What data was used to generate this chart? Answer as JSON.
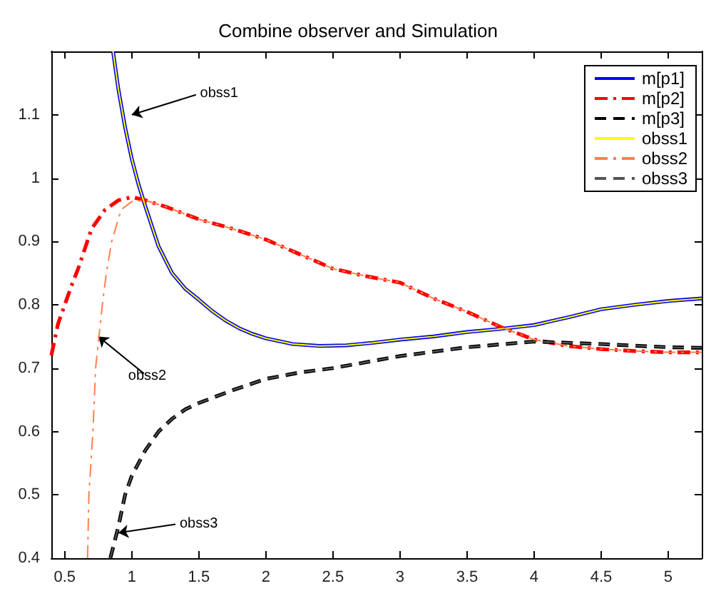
{
  "chart_data": {
    "type": "line",
    "title": "Combine observer and Simulation",
    "xlim": [
      0.4,
      5.25
    ],
    "xticks": [
      0.5,
      1,
      1.5,
      2,
      2.5,
      3,
      3.5,
      4,
      4.5,
      5
    ],
    "ylim": [
      0.4,
      1.2
    ],
    "yticks": [
      0.4,
      0.5,
      0.6,
      0.7,
      0.8,
      0.9,
      1,
      1.1
    ],
    "grid": false,
    "legend": "top right",
    "marker": "none",
    "series": [
      {
        "name": "m[p1]",
        "color": "#0000ff",
        "line_style": "solid",
        "x": [
          0.86,
          0.9,
          0.95,
          1.0,
          1.05,
          1.1,
          1.2,
          1.3,
          1.4,
          1.5,
          1.6,
          1.7,
          1.8,
          1.9,
          2.0,
          2.2,
          2.4,
          2.6,
          2.8,
          3.0,
          3.25,
          3.5,
          3.75,
          4.0,
          4.25,
          4.5,
          4.75,
          5.0,
          5.25
        ],
        "values": [
          1.2,
          1.14,
          1.08,
          1.03,
          0.99,
          0.956,
          0.892,
          0.85,
          0.825,
          0.808,
          0.79,
          0.775,
          0.763,
          0.754,
          0.747,
          0.738,
          0.735,
          0.736,
          0.74,
          0.745,
          0.75,
          0.757,
          0.762,
          0.768,
          0.78,
          0.793,
          0.8,
          0.806,
          0.81
        ]
      },
      {
        "name": "m[p2]",
        "color": "#ff0000",
        "line_style": "dashdot",
        "x": [
          0.4,
          0.45,
          0.5,
          0.55,
          0.6,
          0.7,
          0.8,
          0.9,
          1.0,
          1.1,
          1.25,
          1.5,
          1.75,
          2.0,
          2.25,
          2.5,
          2.75,
          3.0,
          3.25,
          3.5,
          3.75,
          4.0,
          4.25,
          4.5,
          4.75,
          5.0,
          5.25
        ],
        "values": [
          0.72,
          0.77,
          0.8,
          0.83,
          0.857,
          0.92,
          0.95,
          0.965,
          0.97,
          0.965,
          0.955,
          0.935,
          0.92,
          0.903,
          0.88,
          0.857,
          0.845,
          0.835,
          0.81,
          0.789,
          0.765,
          0.745,
          0.735,
          0.73,
          0.727,
          0.725,
          0.725
        ]
      },
      {
        "name": "m[p3]",
        "color": "#000000",
        "line_style": "dashed",
        "x": [
          0.84,
          0.9,
          0.95,
          1.0,
          1.1,
          1.2,
          1.3,
          1.4,
          1.5,
          1.75,
          2.0,
          2.25,
          2.5,
          3.0,
          3.5,
          4.0,
          4.5,
          5.0,
          5.25
        ],
        "values": [
          0.4,
          0.45,
          0.5,
          0.53,
          0.57,
          0.6,
          0.62,
          0.635,
          0.645,
          0.665,
          0.683,
          0.693,
          0.7,
          0.719,
          0.733,
          0.742,
          0.738,
          0.733,
          0.732
        ]
      },
      {
        "name": "obss1",
        "color": "#ffff00",
        "line_style": "solid",
        "x": [
          0.86,
          0.9,
          0.95,
          1.0,
          1.05,
          1.1,
          1.2,
          1.3,
          1.4,
          1.5,
          1.6,
          1.7,
          1.8,
          1.9,
          2.0,
          2.2,
          2.4,
          2.6,
          2.8,
          3.0,
          3.25,
          3.5,
          3.75,
          4.0,
          4.25,
          4.5,
          4.75,
          5.0,
          5.25
        ],
        "values": [
          1.2,
          1.14,
          1.08,
          1.03,
          0.99,
          0.956,
          0.892,
          0.85,
          0.825,
          0.808,
          0.79,
          0.775,
          0.763,
          0.754,
          0.747,
          0.738,
          0.735,
          0.736,
          0.74,
          0.745,
          0.75,
          0.757,
          0.762,
          0.768,
          0.78,
          0.793,
          0.8,
          0.806,
          0.81
        ]
      },
      {
        "name": "obss2",
        "color": "#ff7f50",
        "line_style": "dashdot",
        "x": [
          0.67,
          0.68,
          0.71,
          0.73,
          0.755,
          0.78,
          0.81,
          0.85,
          0.92,
          1.0,
          1.1,
          1.25,
          1.5,
          1.75,
          2.0,
          2.25,
          2.5,
          2.75,
          3.0,
          3.25,
          3.5,
          3.75,
          4.0,
          4.25,
          4.5,
          4.75,
          5.0,
          5.25
        ],
        "values": [
          0.4,
          0.5,
          0.6,
          0.7,
          0.75,
          0.8,
          0.85,
          0.9,
          0.95,
          0.963,
          0.965,
          0.955,
          0.935,
          0.92,
          0.903,
          0.88,
          0.857,
          0.845,
          0.835,
          0.81,
          0.789,
          0.765,
          0.745,
          0.735,
          0.73,
          0.727,
          0.725,
          0.725
        ]
      },
      {
        "name": "obss3",
        "color": "#555555",
        "line_style": "dashed",
        "x": [
          0.84,
          0.9,
          0.95,
          1.0,
          1.1,
          1.2,
          1.3,
          1.4,
          1.5,
          1.75,
          2.0,
          2.25,
          2.5,
          3.0,
          3.5,
          4.0,
          4.5,
          5.0,
          5.25
        ],
        "values": [
          0.4,
          0.45,
          0.5,
          0.53,
          0.57,
          0.6,
          0.62,
          0.635,
          0.645,
          0.665,
          0.683,
          0.693,
          0.7,
          0.719,
          0.733,
          0.742,
          0.738,
          0.733,
          0.732
        ]
      }
    ],
    "annotations": [
      {
        "text": "obss1",
        "x": 1.0,
        "y": 1.1
      },
      {
        "text": "obss2",
        "x": 0.75,
        "y": 0.75
      },
      {
        "text": "obss3",
        "x": 0.9,
        "y": 0.44
      }
    ]
  }
}
